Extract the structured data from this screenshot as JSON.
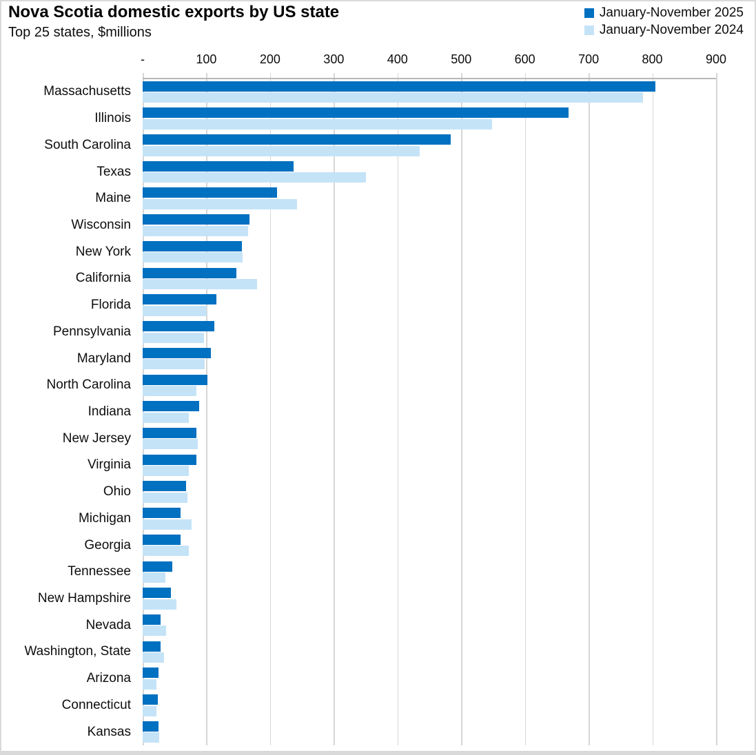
{
  "title": "Nova Scotia domestic exports by US state",
  "subtitle": "Top 25 states, $millions",
  "legend": [
    {
      "label": "January-November 2025",
      "color": "#0070C0"
    },
    {
      "label": "January-November 2024",
      "color": "#C5E3F7"
    }
  ],
  "colors": {
    "series_2025": "#0070C0",
    "series_2024": "#C5E3F7",
    "gridline": "#D6D6D6",
    "axis_line": "#B7B7B7",
    "border": "#D9D9D9"
  },
  "chart_data": {
    "type": "bar",
    "orientation": "horizontal",
    "title": "Nova Scotia domestic exports by US state",
    "subtitle": "Top 25 states, $millions",
    "xlabel": "",
    "ylabel": "",
    "xlim": [
      0,
      900
    ],
    "grid": true,
    "legend_position": "top-right",
    "x_ticks": [
      "-",
      "100",
      "200",
      "300",
      "400",
      "500",
      "600",
      "700",
      "800",
      "900"
    ],
    "x_tick_values": [
      0,
      100,
      200,
      300,
      400,
      500,
      600,
      700,
      800,
      900
    ],
    "categories": [
      "Massachusetts",
      "Illinois",
      "South Carolina",
      "Texas",
      "Maine",
      "Wisconsin",
      "New York",
      "California",
      "Florida",
      "Pennsylvania",
      "Maryland",
      "North Carolina",
      "Indiana",
      "New Jersey",
      "Virginia",
      "Ohio",
      "Michigan",
      "Georgia",
      "Tennessee",
      "New Hampshire",
      "Nevada",
      "Washington, State",
      "Arizona",
      "Connecticut",
      "Kansas"
    ],
    "series": [
      {
        "name": "January-November 2025",
        "color": "#0070C0",
        "values": [
          805,
          668,
          484,
          237,
          211,
          168,
          156,
          147,
          116,
          112,
          107,
          102,
          89,
          84,
          84,
          68,
          60,
          59,
          47,
          44,
          28,
          28,
          25,
          24,
          25
        ]
      },
      {
        "name": "January-November 2024",
        "color": "#C5E3F7",
        "values": [
          785,
          548,
          435,
          351,
          242,
          165,
          157,
          180,
          101,
          96,
          97,
          84,
          73,
          87,
          72,
          70,
          77,
          72,
          36,
          53,
          37,
          34,
          22,
          22,
          26
        ]
      }
    ]
  }
}
